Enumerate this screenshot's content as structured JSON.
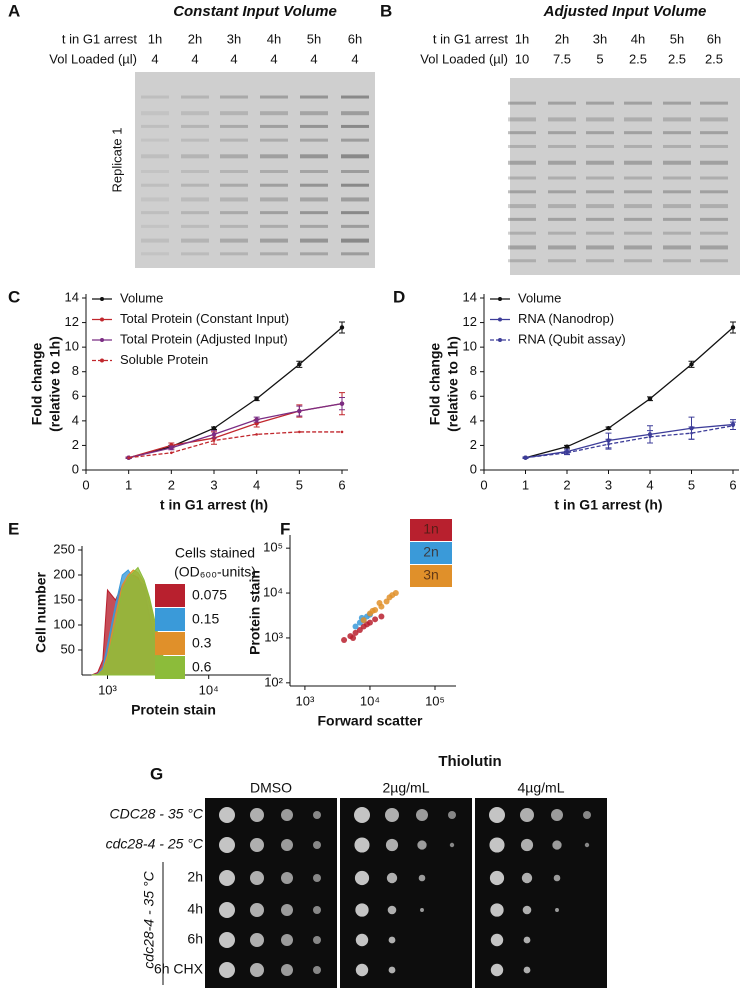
{
  "panel_labels": [
    "A",
    "B",
    "C",
    "D",
    "E",
    "F",
    "G"
  ],
  "gel_a": {
    "title": "Constant Input Volume",
    "row_labels": [
      "t in G1 arrest",
      "Vol Loaded (µl)"
    ],
    "lanes": [
      "1h",
      "2h",
      "3h",
      "4h",
      "5h",
      "6h"
    ],
    "volumes": [
      4,
      4,
      4,
      4,
      4,
      4
    ],
    "side_label": "Replicate 1"
  },
  "gel_b": {
    "title": "Adjusted Input Volume",
    "row_labels": [
      "t in G1 arrest",
      "Vol Loaded (µl)"
    ],
    "lanes": [
      "1h",
      "2h",
      "3h",
      "4h",
      "5h",
      "6h"
    ],
    "volumes": [
      10,
      7.5,
      5,
      2.5,
      2.5,
      2.5
    ]
  },
  "chart_data": [
    {
      "type": "line",
      "xlabel": "t in G1 arrest (h)",
      "ylabel": [
        "Fold change",
        "(relative to 1h)"
      ],
      "x": [
        1,
        2,
        3,
        4,
        5,
        6
      ],
      "xlim": [
        0,
        6
      ],
      "xticks": [
        0,
        1,
        2,
        3,
        4,
        5,
        6
      ],
      "ylim": [
        0,
        14
      ],
      "yticks": [
        0,
        2,
        4,
        6,
        8,
        10,
        12,
        14
      ],
      "legend": "upper left",
      "series": [
        {
          "name": "Volume",
          "color": "#111111",
          "linestyle": "solid",
          "values": [
            1,
            1.9,
            3.4,
            5.8,
            8.6,
            11.6
          ],
          "errors": [
            0.05,
            0.1,
            0.1,
            0.15,
            0.25,
            0.45
          ]
        },
        {
          "name": "Total Protein (Constant Input)",
          "color": "#c1272d",
          "linestyle": "solid",
          "values": [
            1,
            2.0,
            2.6,
            3.8,
            4.8,
            5.4
          ],
          "errors": [
            0.05,
            0.2,
            0.5,
            0.3,
            0.5,
            0.9
          ]
        },
        {
          "name": "Total Protein (Adjusted Input)",
          "color": "#7b2d84",
          "linestyle": "solid",
          "values": [
            1,
            1.8,
            2.9,
            4.1,
            4.8,
            5.4
          ],
          "errors": [
            0.05,
            0.15,
            0.3,
            0.2,
            0.4,
            0.5
          ]
        },
        {
          "name": "Soluble Protein",
          "color": "#c1272d",
          "linestyle": "dashed",
          "values": [
            1,
            1.4,
            2.4,
            2.9,
            3.1,
            3.1
          ]
        }
      ]
    },
    {
      "type": "line",
      "xlabel": "t in G1 arrest (h)",
      "ylabel": [
        "Fold change",
        "(relative to 1h)"
      ],
      "x": [
        1,
        2,
        3,
        4,
        5,
        6
      ],
      "xlim": [
        0,
        6
      ],
      "xticks": [
        0,
        1,
        2,
        3,
        4,
        5,
        6
      ],
      "ylim": [
        0,
        14
      ],
      "yticks": [
        0,
        2,
        4,
        6,
        8,
        10,
        12,
        14
      ],
      "legend": "upper left",
      "series": [
        {
          "name": "Volume",
          "color": "#111111",
          "linestyle": "solid",
          "values": [
            1,
            1.9,
            3.4,
            5.8,
            8.6,
            11.6
          ],
          "errors": [
            0.05,
            0.1,
            0.1,
            0.15,
            0.25,
            0.45
          ]
        },
        {
          "name": "RNA (Nanodrop)",
          "color": "#3d3d99",
          "linestyle": "solid",
          "values": [
            1,
            1.5,
            2.4,
            2.9,
            3.4,
            3.7
          ],
          "errors": [
            0.05,
            0.2,
            0.6,
            0.7,
            0.9,
            0.4
          ]
        },
        {
          "name": "RNA (Qubit assay)",
          "color": "#3d3d99",
          "linestyle": "dashed",
          "values": [
            1,
            1.4,
            2.1,
            2.7,
            3.0,
            3.6
          ],
          "errors": [
            0.05,
            0.15,
            0.4,
            0.5,
            0.5,
            0.3
          ]
        }
      ]
    },
    {
      "type": "area",
      "xlabel": "Protein stain",
      "ylabel": "Cell number",
      "xscale": "log",
      "xlim": [
        560,
        36000
      ],
      "xticks": [
        {
          "value": 1000,
          "label": "10³"
        },
        {
          "value": 10000,
          "label": "10⁴"
        }
      ],
      "ylim": [
        0,
        250
      ],
      "yticks": [
        50,
        100,
        150,
        200,
        250
      ],
      "legend_title": [
        "Cells stained",
        "(OD₆₀₀-units)"
      ],
      "x": [
        700,
        800,
        900,
        1000,
        1200,
        1400,
        1600,
        1800,
        2000,
        2300,
        2600,
        3000,
        3500,
        4000,
        4500
      ],
      "series": [
        {
          "name": "0.075",
          "color": "#b8202e",
          "values": [
            0,
            5,
            30,
            170,
            150,
            180,
            190,
            200,
            195,
            170,
            120,
            60,
            20,
            5,
            0
          ]
        },
        {
          "name": "0.15",
          "color": "#3a9ad9",
          "values": [
            0,
            2,
            15,
            60,
            140,
            200,
            210,
            195,
            190,
            180,
            140,
            80,
            30,
            8,
            0
          ]
        },
        {
          "name": "0.3",
          "color": "#e0902a",
          "values": [
            0,
            1,
            10,
            40,
            120,
            180,
            200,
            210,
            205,
            185,
            150,
            90,
            35,
            10,
            0
          ]
        },
        {
          "name": "0.6",
          "color": "#8cbc3a",
          "values": [
            0,
            1,
            8,
            30,
            100,
            170,
            195,
            205,
            215,
            190,
            155,
            100,
            40,
            12,
            0
          ]
        }
      ]
    },
    {
      "type": "scatter",
      "xlabel": "Forward scatter",
      "ylabel": "Protein stain",
      "xscale": "log",
      "yscale": "log",
      "xlim": [
        590,
        170000
      ],
      "ylim": [
        85,
        160000
      ],
      "xticks": [
        {
          "value": 1000,
          "label": "10³"
        },
        {
          "value": 10000,
          "label": "10⁴"
        },
        {
          "value": 100000,
          "label": "10⁵"
        }
      ],
      "yticks": [
        {
          "value": 100,
          "label": "10²"
        },
        {
          "value": 1000,
          "label": "10³"
        },
        {
          "value": 10000,
          "label": "10⁴"
        },
        {
          "value": 100000,
          "label": "10⁵"
        }
      ],
      "series": [
        {
          "name": "1n",
          "color": "#b8202e",
          "x": [
            4000,
            5000,
            6000,
            7000,
            8000,
            10000,
            12000,
            5500,
            9000,
            15000
          ],
          "values": [
            900,
            1100,
            1300,
            1500,
            1800,
            2200,
            2600,
            1000,
            2000,
            3000
          ]
        },
        {
          "name": "2n",
          "color": "#3a9ad9",
          "x": [
            6000,
            7000,
            8000,
            9000,
            10000,
            7500
          ],
          "values": [
            1800,
            2200,
            2500,
            3000,
            3300,
            2800
          ]
        },
        {
          "name": "3n",
          "color": "#e0902a",
          "x": [
            8000,
            10000,
            12000,
            15000,
            18000,
            20000,
            25000,
            11000,
            14000,
            22000
          ],
          "values": [
            2500,
            3500,
            4200,
            5000,
            6500,
            8000,
            10000,
            4000,
            6000,
            9000
          ]
        }
      ]
    }
  ],
  "plate": {
    "title": "Thiolutin",
    "columns": [
      "DMSO",
      "2µg/mL",
      "4µg/mL"
    ],
    "rows": [
      "CDC28 - 35 °C",
      "cdc28-4 - 25 °C",
      "2h",
      "4h",
      "6h",
      "6h CHX"
    ],
    "group_label": "cdc28-4 - 35 °C"
  }
}
